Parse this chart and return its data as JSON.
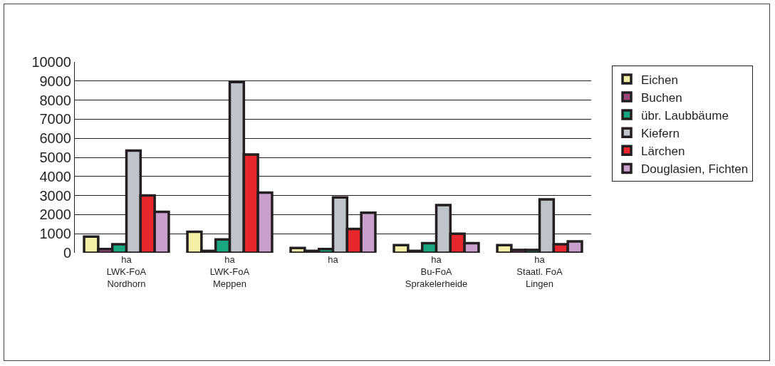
{
  "chart_data": {
    "type": "bar",
    "categories": [
      "ha\nLWK-FoA\nNordhorn",
      "ha\nLWK-FoA\nMeppen",
      "ha",
      "ha\nBu-FoA\nSprakelerheide",
      "ha\nStaatl. FoA\nLingen"
    ],
    "series": [
      {
        "name": "Eichen",
        "color": "#f5f0a8",
        "values": [
          850,
          1100,
          250,
          400,
          400
        ]
      },
      {
        "name": "Buchen",
        "color": "#9b4a7a",
        "values": [
          200,
          100,
          100,
          100,
          150
        ]
      },
      {
        "name": "übr. Laubbäume",
        "color": "#1aa67f",
        "values": [
          450,
          700,
          200,
          500,
          150
        ]
      },
      {
        "name": "Kiefern",
        "color": "#c0c3c8",
        "values": [
          5350,
          8950,
          2900,
          2500,
          2800
        ]
      },
      {
        "name": "Lärchen",
        "color": "#e8262d",
        "values": [
          3000,
          5150,
          1250,
          1000,
          450
        ]
      },
      {
        "name": "Douglasien, Fichten",
        "color": "#c9a0cc",
        "values": [
          2150,
          3150,
          2100,
          500,
          600
        ]
      }
    ],
    "ylim": [
      0,
      10000
    ],
    "yticks": [
      0,
      1000,
      2000,
      3000,
      4000,
      5000,
      6000,
      7000,
      8000,
      9000,
      10000
    ],
    "grid": "y",
    "legend": "right"
  }
}
